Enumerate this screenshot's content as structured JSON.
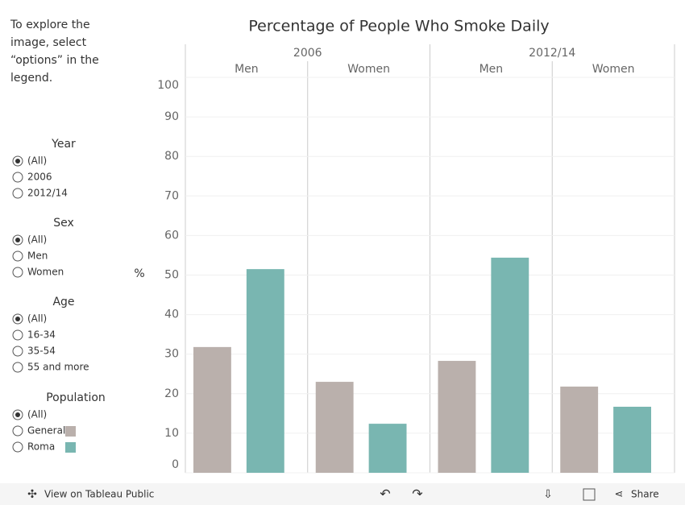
{
  "chart_data": {
    "type": "bar",
    "title": "Percentage of People Who Smoke Daily",
    "ylabel": "%",
    "groups": [
      "2006",
      "2012/14"
    ],
    "categories": [
      "Men",
      "Women",
      "Men",
      "Women"
    ],
    "series": [
      {
        "name": "General",
        "color": "#bab0ac",
        "values": [
          31.8,
          23,
          28.3,
          21.8
        ]
      },
      {
        "name": "Roma",
        "color": "#79b6b1",
        "values": [
          51.5,
          12.4,
          54.4,
          16.7
        ]
      }
    ],
    "ylim": [
      0,
      100
    ],
    "yticks": [
      0,
      10,
      20,
      30,
      40,
      50,
      60,
      70,
      80,
      90,
      100
    ],
    "grid": true
  },
  "sidebar": {
    "intro": [
      "To explore the",
      "image, select",
      "“options” in the",
      "legend."
    ],
    "filters": [
      {
        "title": "Year",
        "options": [
          "(All)",
          "2006",
          "2012/14"
        ]
      },
      {
        "title": "Sex",
        "options": [
          "(All)",
          "Men",
          "Women"
        ]
      },
      {
        "title": "Age",
        "options": [
          "(All)",
          "16-34",
          "35-54",
          "55 and more"
        ]
      }
    ],
    "legend": {
      "title": "Population",
      "all": "(All)"
    }
  },
  "toolbar": {
    "view": "View on Tableau Public",
    "share": "Share"
  }
}
